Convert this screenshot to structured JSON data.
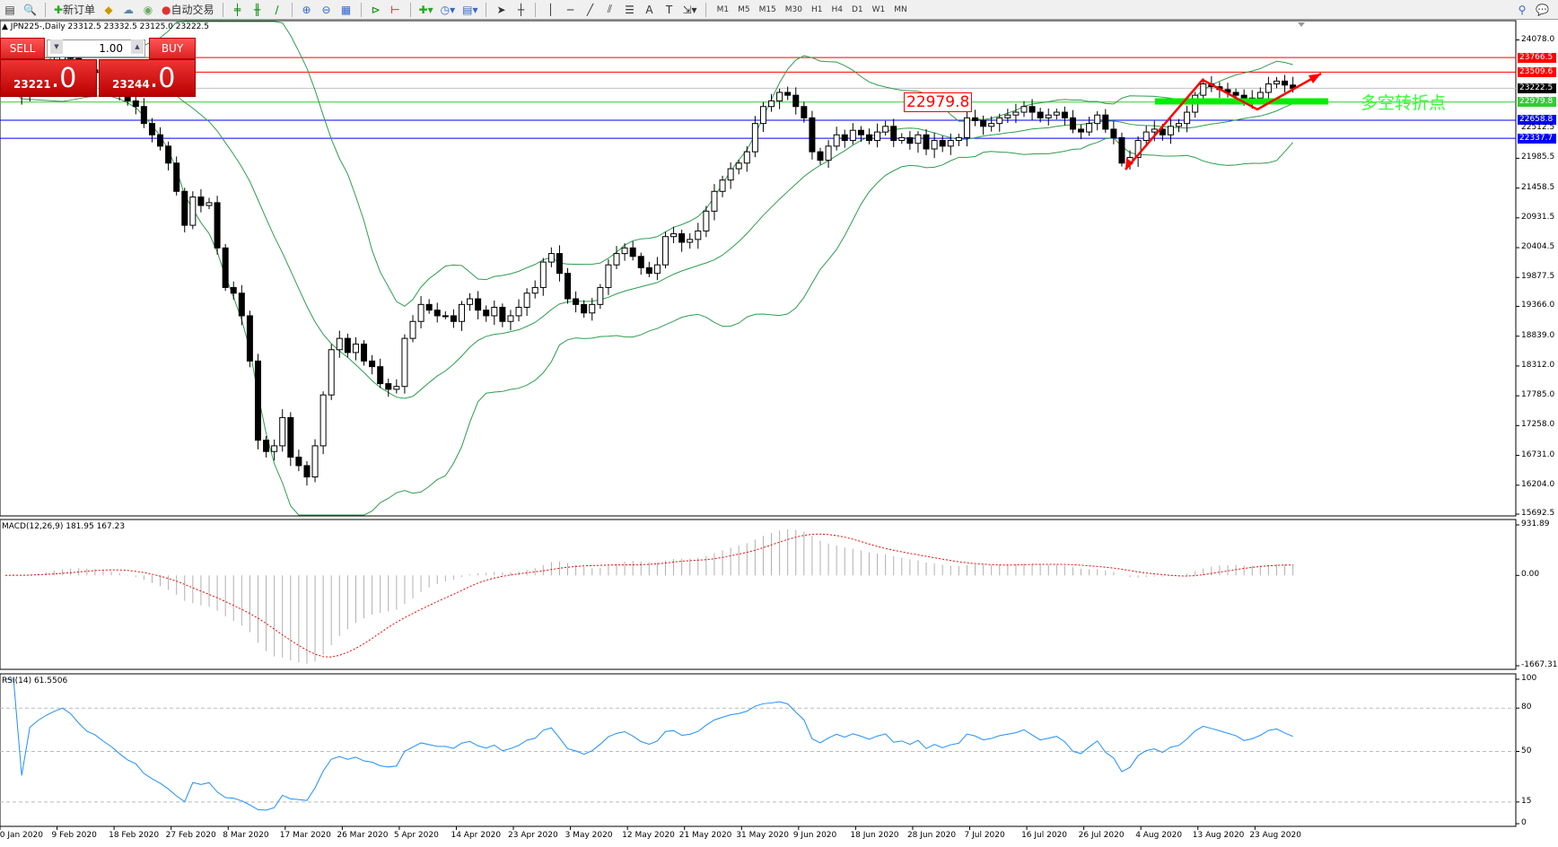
{
  "toolbar": {
    "new_order": "新订单",
    "auto_trading": "自动交易",
    "timeframes": [
      "M1",
      "M5",
      "M15",
      "M30",
      "H1",
      "H4",
      "D1",
      "W1",
      "MN"
    ]
  },
  "symbol_header": "JPN225-,Daily  23312.5 23332.5 23125.0 23222.5",
  "trade_panel": {
    "sell_label": "SELL",
    "buy_label": "BUY",
    "lot": "1.00",
    "sell_price_main": "23221",
    "sell_price_frac": ".0",
    "buy_price_main": "23244",
    "buy_price_frac": ".0"
  },
  "annotation": {
    "price_label": "22979.8",
    "text": "多空转折点",
    "text_color": "#33ff33",
    "arrow_color": "#ff0000"
  },
  "macd_label": "MACD(12,26,9) 181.95 167.23",
  "rsi_label": "RSI(14) 61.5506",
  "chart_data": {
    "type": "candlestick",
    "symbol": "JPN225-",
    "timeframe": "Daily",
    "price_axis": {
      "ticks": [
        "24078.0",
        "21985.5",
        "21458.5",
        "20931.5",
        "20404.5",
        "19877.5",
        "19366.0",
        "18839.0",
        "18312.0",
        "17785.0",
        "17258.0",
        "16731.0",
        "16204.0",
        "15692.5"
      ],
      "range": [
        15692.5,
        24078.0
      ]
    },
    "levels": [
      {
        "value": "23766.5",
        "color": "#ff0000"
      },
      {
        "value": "23509.6",
        "color": "#ff0000"
      },
      {
        "value": "23222.5",
        "color": "#000000",
        "line": "#c0c0c0"
      },
      {
        "value": "22979.8",
        "color": "#33cc33"
      },
      {
        "value": "22658.8",
        "color": "#0000ff"
      },
      {
        "value": "22512.5",
        "color": null
      },
      {
        "value": "22337.7",
        "color": "#0000ff"
      }
    ],
    "date_labels": [
      "30 Jan 2020",
      "9 Feb 2020",
      "18 Feb 2020",
      "27 Feb 2020",
      "8 Mar 2020",
      "17 Mar 2020",
      "26 Mar 2020",
      "5 Apr 2020",
      "14 Apr 2020",
      "23 Apr 2020",
      "3 May 2020",
      "12 May 2020",
      "21 May 2020",
      "31 May 2020",
      "9 Jun 2020",
      "18 Jun 2020",
      "28 Jun 2020",
      "7 Jul 2020",
      "16 Jul 2020",
      "26 Jul 2020",
      "4 Aug 2020",
      "13 Aug 2020",
      "23 Aug 2020"
    ],
    "closes": [
      23200,
      23300,
      23100,
      23400,
      23500,
      23600,
      23700,
      23800,
      23750,
      23650,
      23550,
      23500,
      23400,
      23300,
      23150,
      23000,
      22900,
      22600,
      22400,
      22200,
      21900,
      21400,
      20800,
      21300,
      21150,
      21200,
      20400,
      19700,
      19600,
      19200,
      18400,
      17000,
      16800,
      16900,
      17400,
      16700,
      16550,
      16350,
      16900,
      17800,
      18600,
      18800,
      18550,
      18700,
      18400,
      18300,
      18000,
      17900,
      17950,
      18800,
      19100,
      19400,
      19300,
      19200,
      19200,
      19100,
      19400,
      19500,
      19300,
      19200,
      19350,
      19100,
      19200,
      19350,
      19600,
      19700,
      20150,
      20300,
      19950,
      19500,
      19400,
      19250,
      19400,
      19700,
      20100,
      20300,
      20400,
      20250,
      20050,
      19950,
      20100,
      20600,
      20650,
      20500,
      20550,
      20700,
      21050,
      21400,
      21600,
      21800,
      21900,
      22100,
      22600,
      22900,
      23000,
      23150,
      23100,
      22900,
      22700,
      22100,
      21950,
      22200,
      22400,
      22300,
      22480,
      22400,
      22300,
      22450,
      22550,
      22300,
      22350,
      22250,
      22400,
      22150,
      22300,
      22200,
      22300,
      22350,
      22700,
      22650,
      22550,
      22600,
      22700,
      22750,
      22800,
      22900,
      22800,
      22700,
      22750,
      22800,
      22700,
      22500,
      22450,
      22600,
      22750,
      22500,
      22350,
      21900,
      22000,
      22300,
      22450,
      22500,
      22400,
      22550,
      22600,
      22800,
      23100,
      23300,
      23250,
      23200,
      23150,
      23100,
      23000,
      23050,
      23150,
      23300,
      23350,
      23280,
      23222.5
    ],
    "indicators": {
      "bollinger": {
        "period": 20,
        "deviation": 2,
        "color": "#2e9e4f"
      },
      "macd": {
        "fast": 12,
        "slow": 26,
        "signal": 9,
        "axis": [
          "931.89",
          "0.00",
          "-1667.31"
        ],
        "histogram_color": "#b0b0b0",
        "signal_color": "#ff0000"
      },
      "rsi": {
        "period": 14,
        "levels": [
          "100",
          "80",
          "50",
          "15",
          "0"
        ],
        "color": "#1e90ff"
      }
    }
  }
}
